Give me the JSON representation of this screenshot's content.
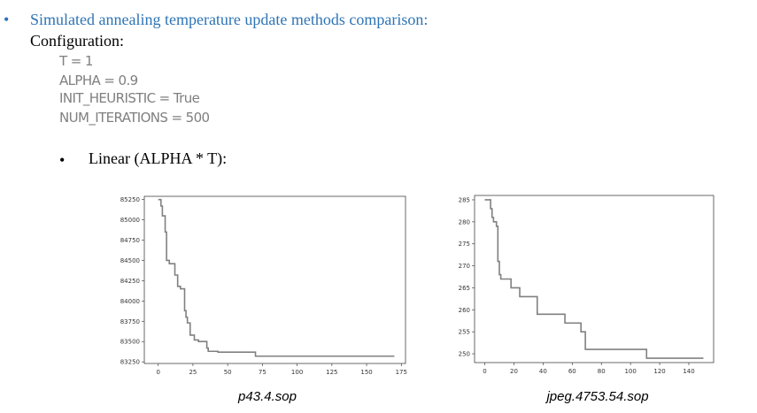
{
  "heading": {
    "bullet": "•",
    "text": "Simulated annealing temperature update methods comparison:",
    "color": "#2e74b5"
  },
  "configuration": {
    "label": "Configuration:",
    "lines": [
      "T = 1",
      "ALPHA = 0.9",
      "INIT_HEURISTIC = True",
      "NUM_ITERATIONS = 500"
    ]
  },
  "sub_item": {
    "bullet": "•",
    "text": "Linear (ALPHA * T):"
  },
  "captions": [
    "p43.4.sop",
    "jpeg.4753.54.sop"
  ],
  "chart_data": [
    {
      "type": "line",
      "title": "",
      "xlabel": "",
      "ylabel": "",
      "xlim": [
        -10,
        178
      ],
      "ylim": [
        83230,
        85290
      ],
      "xticks": [
        0,
        25,
        50,
        75,
        100,
        125,
        150,
        175
      ],
      "yticks": [
        83250,
        83500,
        83750,
        84000,
        84250,
        84500,
        84750,
        85000,
        85250
      ],
      "line_color": "#808080",
      "series": [
        {
          "x": [
            0,
            2,
            2,
            3,
            3,
            5,
            5,
            6,
            6,
            8,
            8,
            12,
            12,
            14,
            14,
            16,
            16,
            19,
            19,
            20,
            20,
            21,
            21,
            23,
            23,
            26,
            26,
            29,
            29,
            35,
            35,
            36,
            36,
            43,
            43,
            70,
            70,
            170
          ],
          "y": [
            85250,
            85250,
            85170,
            85170,
            85050,
            85050,
            84850,
            84850,
            84500,
            84500,
            84460,
            84460,
            84320,
            84320,
            84180,
            84180,
            84150,
            84150,
            83880,
            83880,
            83800,
            83800,
            83730,
            83730,
            83580,
            83580,
            83520,
            83520,
            83500,
            83500,
            83420,
            83420,
            83380,
            83380,
            83370,
            83370,
            83320,
            83320
          ]
        }
      ]
    },
    {
      "type": "line",
      "title": "",
      "xlabel": "",
      "ylabel": "",
      "xlim": [
        -7,
        157
      ],
      "ylim": [
        248,
        286
      ],
      "xticks": [
        0,
        20,
        40,
        60,
        80,
        100,
        120,
        140
      ],
      "yticks": [
        250,
        255,
        260,
        265,
        270,
        275,
        280,
        285
      ],
      "line_color": "#808080",
      "series": [
        {
          "x": [
            0,
            4,
            4,
            5,
            5,
            6,
            6,
            8,
            8,
            9,
            9,
            10,
            10,
            11,
            11,
            12,
            12,
            18,
            18,
            22,
            22,
            24,
            24,
            36,
            36,
            55,
            55,
            66,
            66,
            69,
            69,
            71,
            71,
            111,
            111,
            150
          ],
          "y": [
            285,
            285,
            283,
            283,
            281,
            281,
            280,
            280,
            279,
            279,
            271,
            271,
            268,
            268,
            267,
            267,
            267,
            267,
            265,
            265,
            265,
            265,
            263,
            263,
            259,
            259,
            257,
            257,
            255,
            255,
            251,
            251,
            251,
            251,
            249,
            249
          ]
        }
      ]
    }
  ]
}
